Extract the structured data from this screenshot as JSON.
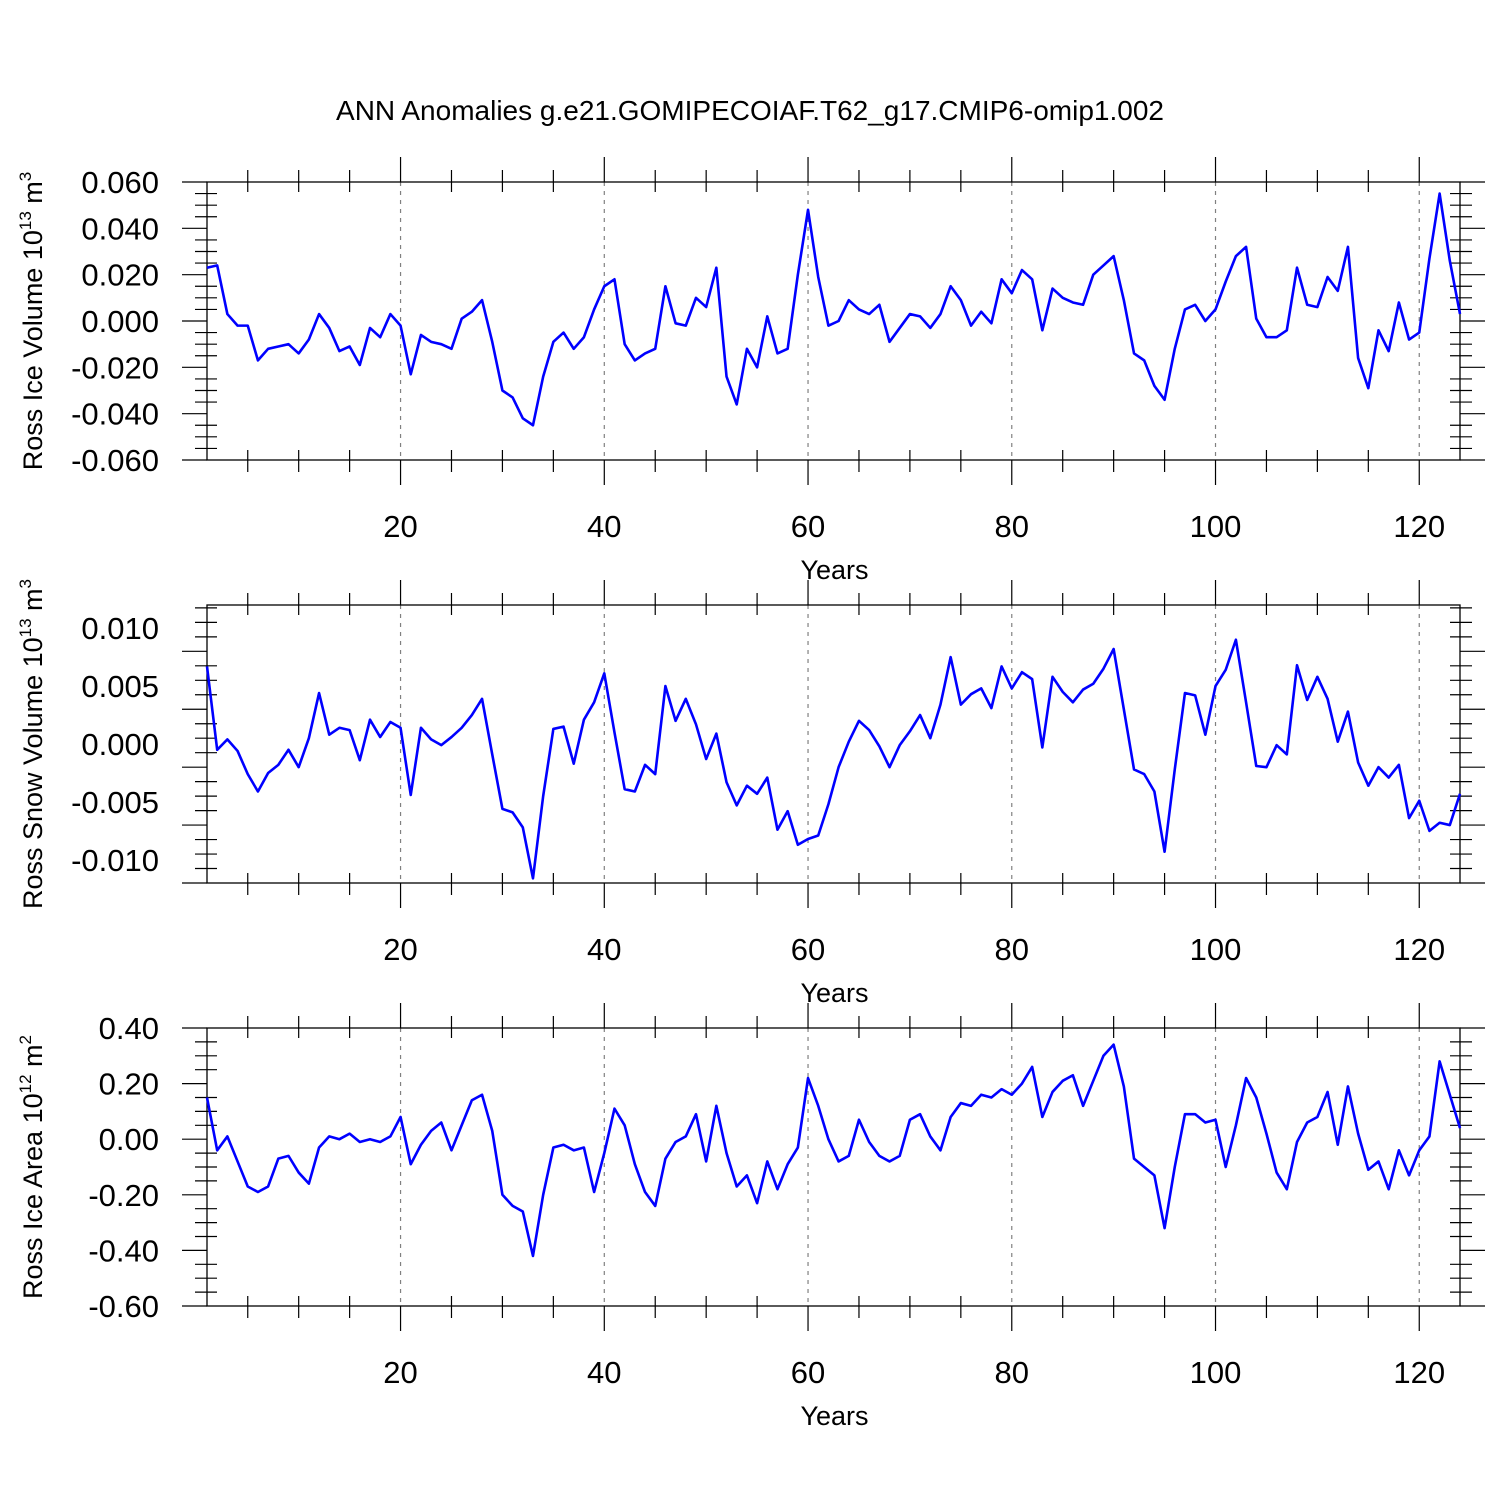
{
  "title": "ANN Anomalies g.e21.GOMIPECOIAF.T62_g17.CMIP6-omip1.002",
  "colors": {
    "line": "#0000ff",
    "axis": "#000000",
    "grid": "#808080"
  },
  "chart_data": [
    {
      "type": "line",
      "ylabel": {
        "text": "Ross Ice Volume 10",
        "exp": "13",
        "unit": " m",
        "unit_exp": "3"
      },
      "xlabel": "Years",
      "xlim": [
        1,
        124
      ],
      "ylim": [
        -0.06,
        0.06
      ],
      "yticks": [
        -0.06,
        -0.04,
        -0.02,
        0.0,
        0.02,
        0.04,
        0.06
      ],
      "yticklabels": [
        "-0.060",
        "-0.040",
        "-0.020",
        "0.000",
        "0.020",
        "0.040",
        "0.060"
      ],
      "xticks": [
        20,
        40,
        60,
        80,
        100,
        120
      ],
      "xticklabels": [
        "20",
        "40",
        "60",
        "80",
        "100",
        "120"
      ],
      "grid": "dashed vertical at x ticks",
      "series": [
        {
          "values": [
            0.023,
            0.024,
            0.003,
            -0.002,
            -0.002,
            -0.017,
            -0.012,
            -0.011,
            -0.01,
            -0.014,
            -0.008,
            0.003,
            -0.003,
            -0.013,
            -0.011,
            -0.019,
            -0.003,
            -0.007,
            0.003,
            -0.002,
            -0.023,
            -0.006,
            -0.009,
            -0.01,
            -0.012,
            0.001,
            0.004,
            0.009,
            -0.009,
            -0.03,
            -0.033,
            -0.042,
            -0.045,
            -0.024,
            -0.009,
            -0.005,
            -0.012,
            -0.007,
            0.005,
            0.015,
            0.018,
            -0.01,
            -0.017,
            -0.014,
            -0.012,
            0.015,
            -0.001,
            -0.002,
            0.01,
            0.006,
            0.023,
            -0.024,
            -0.036,
            -0.012,
            -0.02,
            0.002,
            -0.014,
            -0.012,
            0.02,
            0.048,
            0.019,
            -0.002,
            0.0,
            0.009,
            0.005,
            0.003,
            0.007,
            -0.009,
            -0.003,
            0.003,
            0.002,
            -0.003,
            0.003,
            0.015,
            0.009,
            -0.002,
            0.004,
            -0.001,
            0.018,
            0.012,
            0.022,
            0.018,
            -0.004,
            0.014,
            0.01,
            0.008,
            0.007,
            0.02,
            0.024,
            0.028,
            0.009,
            -0.014,
            -0.017,
            -0.028,
            -0.034,
            -0.012,
            0.005,
            0.007,
            0.0,
            0.005,
            0.017,
            0.028,
            0.032,
            0.001,
            -0.007,
            -0.007,
            -0.004,
            0.023,
            0.007,
            0.006,
            0.019,
            0.013,
            0.032,
            -0.016,
            -0.029,
            -0.004,
            -0.013,
            0.008,
            -0.008,
            -0.005,
            0.027,
            0.055,
            0.026,
            0.003
          ]
        }
      ]
    },
    {
      "type": "line",
      "ylabel": {
        "text": "Ross Snow Volume 10",
        "exp": "13",
        "unit": " m",
        "unit_exp": "3"
      },
      "xlabel": "Years",
      "xlim": [
        1,
        124
      ],
      "ylim": [
        -0.012,
        0.012
      ],
      "yticks": [
        -0.01,
        -0.005,
        0.0,
        0.005,
        0.01
      ],
      "yticklabels": [
        "-0.010",
        "-0.005",
        "0.000",
        "0.005",
        "0.010"
      ],
      "xticks": [
        20,
        40,
        60,
        80,
        100,
        120
      ],
      "xticklabels": [
        "20",
        "40",
        "60",
        "80",
        "100",
        "120"
      ],
      "grid": "dashed vertical at x ticks",
      "series": [
        {
          "values": [
            0.0067,
            -0.0005,
            0.0004,
            -0.0006,
            -0.0026,
            -0.0041,
            -0.0025,
            -0.0018,
            -0.0005,
            -0.002,
            0.0005,
            0.0044,
            0.0008,
            0.0014,
            0.0012,
            -0.0014,
            0.0021,
            0.0006,
            0.0019,
            0.0014,
            -0.0044,
            0.0014,
            0.0004,
            -0.0001,
            0.0006,
            0.0014,
            0.0025,
            0.0039,
            -0.0009,
            -0.0056,
            -0.0059,
            -0.0072,
            -0.0116,
            -0.0045,
            0.0013,
            0.0015,
            -0.0017,
            0.0021,
            0.0036,
            0.0061,
            0.001,
            -0.0039,
            -0.0041,
            -0.0018,
            -0.0026,
            0.005,
            0.002,
            0.0039,
            0.0017,
            -0.0013,
            0.0009,
            -0.0033,
            -0.0053,
            -0.0036,
            -0.0043,
            -0.0029,
            -0.0074,
            -0.0058,
            -0.0087,
            -0.0082,
            -0.0079,
            -0.0052,
            -0.002,
            0.0002,
            0.002,
            0.0012,
            -0.0002,
            -0.002,
            -0.0001,
            0.0011,
            0.0025,
            0.0005,
            0.0034,
            0.0075,
            0.0034,
            0.0043,
            0.0048,
            0.0031,
            0.0067,
            0.0048,
            0.0062,
            0.0056,
            -0.0003,
            0.0058,
            0.0045,
            0.0036,
            0.0047,
            0.0052,
            0.0065,
            0.0082,
            0.003,
            -0.0022,
            -0.0026,
            -0.0041,
            -0.0093,
            -0.0022,
            0.0044,
            0.0042,
            0.0008,
            0.005,
            0.0064,
            0.009,
            0.0036,
            -0.0019,
            -0.002,
            -0.0001,
            -0.0009,
            0.0068,
            0.0038,
            0.0058,
            0.0039,
            0.0002,
            0.0028,
            -0.0016,
            -0.0036,
            -0.002,
            -0.0029,
            -0.0018,
            -0.0064,
            -0.0049,
            -0.0075,
            -0.0068,
            -0.007,
            -0.0043
          ]
        }
      ]
    },
    {
      "type": "line",
      "ylabel": {
        "text": "Ross Ice Area 10",
        "exp": "12",
        "unit": " m",
        "unit_exp": "2"
      },
      "xlabel": "Years",
      "xlim": [
        1,
        124
      ],
      "ylim": [
        -0.6,
        0.4
      ],
      "yticks": [
        -0.6,
        -0.4,
        -0.2,
        0.0,
        0.2,
        0.4
      ],
      "yticklabels": [
        "-0.60",
        "-0.40",
        "-0.20",
        "0.00",
        "0.20",
        "0.40"
      ],
      "xticks": [
        20,
        40,
        60,
        80,
        100,
        120
      ],
      "xticklabels": [
        "20",
        "40",
        "60",
        "80",
        "100",
        "120"
      ],
      "grid": "dashed vertical at x ticks",
      "series": [
        {
          "values": [
            0.15,
            -0.04,
            0.01,
            -0.08,
            -0.17,
            -0.19,
            -0.17,
            -0.07,
            -0.06,
            -0.12,
            -0.16,
            -0.03,
            0.01,
            0.0,
            0.02,
            -0.01,
            0.0,
            -0.01,
            0.01,
            0.08,
            -0.09,
            -0.02,
            0.03,
            0.06,
            -0.04,
            0.05,
            0.14,
            0.16,
            0.03,
            -0.2,
            -0.24,
            -0.26,
            -0.42,
            -0.2,
            -0.03,
            -0.02,
            -0.04,
            -0.03,
            -0.19,
            -0.05,
            0.11,
            0.05,
            -0.09,
            -0.19,
            -0.24,
            -0.07,
            -0.01,
            0.01,
            0.09,
            -0.08,
            0.12,
            -0.05,
            -0.17,
            -0.13,
            -0.23,
            -0.08,
            -0.18,
            -0.09,
            -0.03,
            0.22,
            0.12,
            0.0,
            -0.08,
            -0.06,
            0.07,
            -0.01,
            -0.06,
            -0.08,
            -0.06,
            0.07,
            0.09,
            0.01,
            -0.04,
            0.08,
            0.13,
            0.12,
            0.16,
            0.15,
            0.18,
            0.16,
            0.2,
            0.26,
            0.08,
            0.17,
            0.21,
            0.23,
            0.12,
            0.21,
            0.3,
            0.34,
            0.19,
            -0.07,
            -0.1,
            -0.13,
            -0.32,
            -0.1,
            0.09,
            0.09,
            0.06,
            0.07,
            -0.1,
            0.05,
            0.22,
            0.15,
            0.02,
            -0.12,
            -0.18,
            -0.01,
            0.06,
            0.08,
            0.17,
            -0.02,
            0.19,
            0.02,
            -0.11,
            -0.08,
            -0.18,
            -0.04,
            -0.13,
            -0.04,
            0.01,
            0.28,
            0.16,
            0.04
          ]
        }
      ]
    }
  ]
}
